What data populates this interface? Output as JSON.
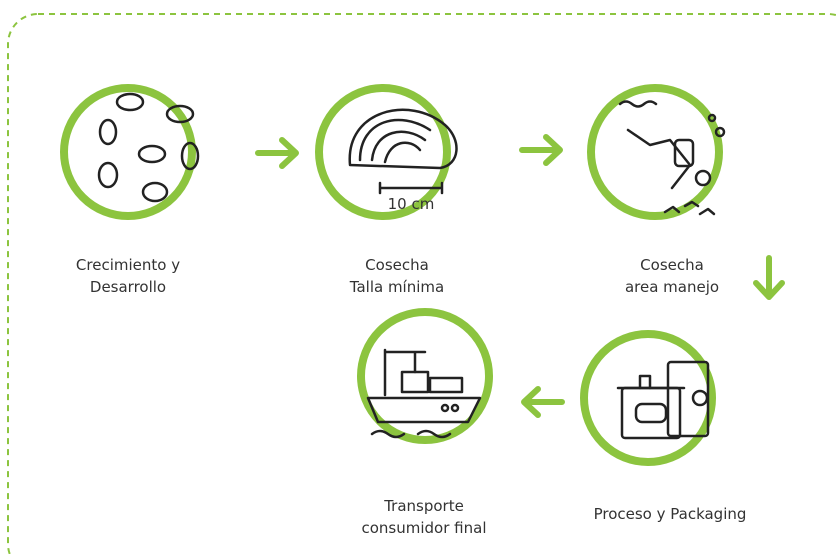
{
  "nodes": [
    {
      "lines": [
        "Crecimiento y",
        "Desarrollo"
      ]
    },
    {
      "lines": [
        "Cosecha",
        "Talla mínima"
      ],
      "scale_label": "10 cm"
    },
    {
      "lines": [
        "Cosecha",
        "area manejo"
      ]
    },
    {
      "lines": [
        "Proceso y Packaging"
      ]
    },
    {
      "lines": [
        "Transporte",
        "consumidor final"
      ]
    }
  ]
}
